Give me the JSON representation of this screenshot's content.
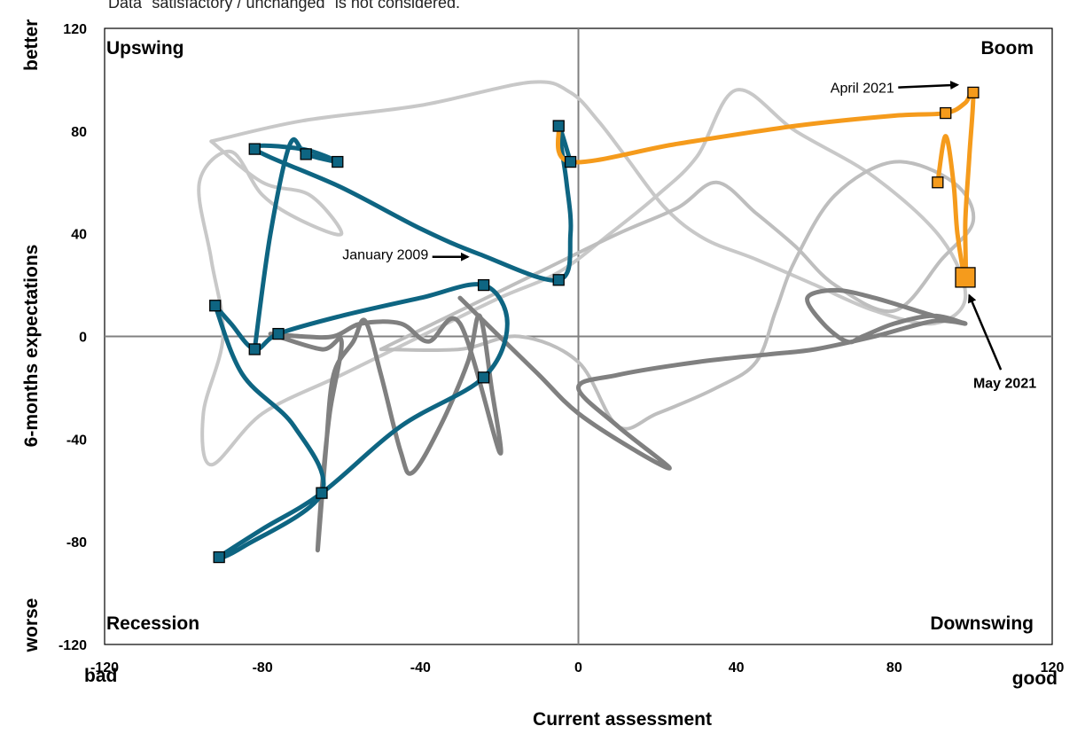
{
  "note": "Data \"satisfactory / unchanged\" is not considered.",
  "chart_data": {
    "type": "line",
    "xlabel": "Current assessment",
    "ylabel": "6-months expectations",
    "x_low_label": "bad",
    "x_high_label": "good",
    "y_low_label": "worse",
    "y_high_label": "better",
    "xlim": [
      -120,
      120
    ],
    "ylim": [
      -120,
      120
    ],
    "xticks": [
      "-120",
      "-80",
      "-40",
      "0",
      "40",
      "80",
      "120"
    ],
    "yticks": [
      "120",
      "80",
      "40",
      "0",
      "-40",
      "-80",
      "-120"
    ],
    "quadrants": {
      "top_left": "Upswing",
      "top_right": "Boom",
      "bottom_left": "Recession",
      "bottom_right": "Downswing"
    },
    "series": [
      {
        "color": "#c8c8c8",
        "values": [
          [
            -93,
            76
          ],
          [
            -70,
            84
          ],
          [
            -40,
            90
          ],
          [
            -12,
            99
          ],
          [
            -2,
            95
          ],
          [
            5,
            84
          ],
          [
            12,
            70
          ],
          [
            22,
            50
          ],
          [
            32,
            38
          ],
          [
            45,
            30
          ],
          [
            60,
            20
          ],
          [
            75,
            10
          ],
          [
            90,
            5
          ],
          [
            98,
            15
          ],
          [
            92,
            38
          ],
          [
            75,
            62
          ],
          [
            55,
            80
          ],
          [
            40,
            96
          ],
          [
            30,
            70
          ],
          [
            20,
            55
          ],
          [
            8,
            40
          ],
          [
            -5,
            25
          ],
          [
            -20,
            15
          ],
          [
            -40,
            0
          ],
          [
            -60,
            -15
          ],
          [
            -80,
            -30
          ],
          [
            -93,
            -50
          ],
          [
            -95,
            -30
          ],
          [
            -90,
            0
          ],
          [
            -93,
            30
          ],
          [
            -96,
            60
          ],
          [
            -88,
            72
          ],
          [
            -80,
            55
          ],
          [
            -70,
            45
          ],
          [
            -60,
            40
          ],
          [
            -68,
            55
          ],
          [
            -80,
            60
          ],
          [
            -93,
            76
          ]
        ]
      },
      {
        "color": "#bebebe",
        "values": [
          [
            -50,
            -5
          ],
          [
            -30,
            10
          ],
          [
            -10,
            25
          ],
          [
            10,
            40
          ],
          [
            25,
            50
          ],
          [
            35,
            60
          ],
          [
            45,
            48
          ],
          [
            55,
            35
          ],
          [
            65,
            20
          ],
          [
            80,
            10
          ],
          [
            92,
            30
          ],
          [
            100,
            45
          ],
          [
            95,
            60
          ],
          [
            80,
            68
          ],
          [
            65,
            55
          ],
          [
            55,
            30
          ],
          [
            50,
            10
          ],
          [
            45,
            -10
          ],
          [
            35,
            -20
          ],
          [
            20,
            -30
          ],
          [
            10,
            -35
          ],
          [
            0,
            -10
          ],
          [
            -15,
            0
          ],
          [
            -30,
            -5
          ],
          [
            -50,
            -5
          ]
        ]
      },
      {
        "color": "#808080",
        "values": [
          [
            -78,
            1
          ],
          [
            -65,
            -5
          ],
          [
            -60,
            -2
          ],
          [
            -63,
            -30
          ],
          [
            -65,
            -60
          ],
          [
            -66,
            -83
          ],
          [
            -64,
            -45
          ],
          [
            -62,
            -15
          ],
          [
            -57,
            -2
          ],
          [
            -54,
            6
          ],
          [
            -50,
            -15
          ],
          [
            -45,
            -45
          ],
          [
            -42,
            -53
          ],
          [
            -35,
            -35
          ],
          [
            -28,
            -10
          ],
          [
            -25,
            8
          ],
          [
            -22,
            -20
          ],
          [
            -20,
            -45
          ],
          [
            -30,
            5
          ],
          [
            -38,
            -2
          ],
          [
            -45,
            5
          ],
          [
            -55,
            5
          ],
          [
            -62,
            0
          ],
          [
            -70,
            0
          ],
          [
            -78,
            1
          ]
        ]
      },
      {
        "color": "#808080",
        "values": [
          [
            -30,
            15
          ],
          [
            -20,
            0
          ],
          [
            -10,
            -15
          ],
          [
            0,
            -30
          ],
          [
            15,
            -45
          ],
          [
            23,
            -51
          ],
          [
            10,
            -35
          ],
          [
            0,
            -20
          ],
          [
            10,
            -15
          ],
          [
            30,
            -10
          ],
          [
            48,
            -7
          ],
          [
            60,
            -5
          ],
          [
            75,
            0
          ],
          [
            90,
            6
          ],
          [
            98,
            5
          ],
          [
            90,
            8
          ],
          [
            75,
            15
          ],
          [
            65,
            18
          ],
          [
            58,
            15
          ],
          [
            62,
            5
          ],
          [
            68,
            -2
          ],
          [
            72,
            0
          ],
          [
            80,
            5
          ],
          [
            90,
            8
          ],
          [
            98,
            5
          ]
        ]
      },
      {
        "color": "#0e6582",
        "values": [
          [
            -92,
            12
          ],
          [
            -88,
            5
          ],
          [
            -82,
            -5
          ],
          [
            -76,
            1
          ],
          [
            -60,
            8
          ],
          [
            -40,
            15
          ],
          [
            -24,
            20
          ],
          [
            -18,
            5
          ],
          [
            -24,
            -16
          ],
          [
            -45,
            -35
          ],
          [
            -65,
            -61
          ],
          [
            -80,
            -75
          ],
          [
            -91,
            -86
          ],
          [
            -85,
            -82
          ],
          [
            -65,
            -61
          ],
          [
            -72,
            -35
          ],
          [
            -85,
            -15
          ],
          [
            -92,
            12
          ]
        ]
      },
      {
        "color": "#0e6582",
        "values": [
          [
            -82,
            -5
          ],
          [
            -78,
            40
          ],
          [
            -73,
            75
          ],
          [
            -69,
            71
          ],
          [
            -61,
            68
          ],
          [
            -70,
            73
          ],
          [
            -82,
            73
          ],
          [
            -60,
            58
          ],
          [
            -40,
            42
          ],
          [
            -25,
            32
          ],
          [
            -5,
            22
          ],
          [
            -2,
            40
          ],
          [
            -3,
            60
          ],
          [
            -5,
            82
          ],
          [
            -2,
            68
          ]
        ]
      },
      {
        "color": "#f59b1c",
        "values": [
          [
            -5,
            82
          ],
          [
            -2,
            68
          ],
          [
            25,
            75
          ],
          [
            55,
            82
          ],
          [
            80,
            86
          ],
          [
            93,
            87
          ],
          [
            98,
            91
          ],
          [
            100,
            95
          ],
          [
            99,
            70
          ],
          [
            98,
            45
          ],
          [
            98,
            23
          ],
          [
            96,
            40
          ],
          [
            95,
            60
          ],
          [
            93,
            78
          ],
          [
            91,
            60
          ]
        ]
      }
    ],
    "markers_blue": [
      [
        -92,
        12
      ],
      [
        -82,
        -5
      ],
      [
        -76,
        1
      ],
      [
        -82,
        73
      ],
      [
        -69,
        71
      ],
      [
        -61,
        68
      ],
      [
        -5,
        82
      ],
      [
        -2,
        68
      ],
      [
        -5,
        22
      ],
      [
        -24,
        20
      ],
      [
        -24,
        -16
      ],
      [
        -65,
        -61
      ],
      [
        -91,
        -86
      ]
    ],
    "markers_orange": [
      [
        93,
        87
      ],
      [
        100,
        95
      ],
      [
        91,
        60
      ],
      [
        98,
        23
      ]
    ],
    "annotations": [
      {
        "text": "January 2009",
        "x": -38,
        "y": 30,
        "anchor": "end"
      },
      {
        "text": "April 2021",
        "x": 80,
        "y": 95,
        "anchor": "end"
      },
      {
        "text": "May 2021",
        "x": 108,
        "y": -20,
        "anchor": "middle",
        "bold": true
      }
    ]
  }
}
